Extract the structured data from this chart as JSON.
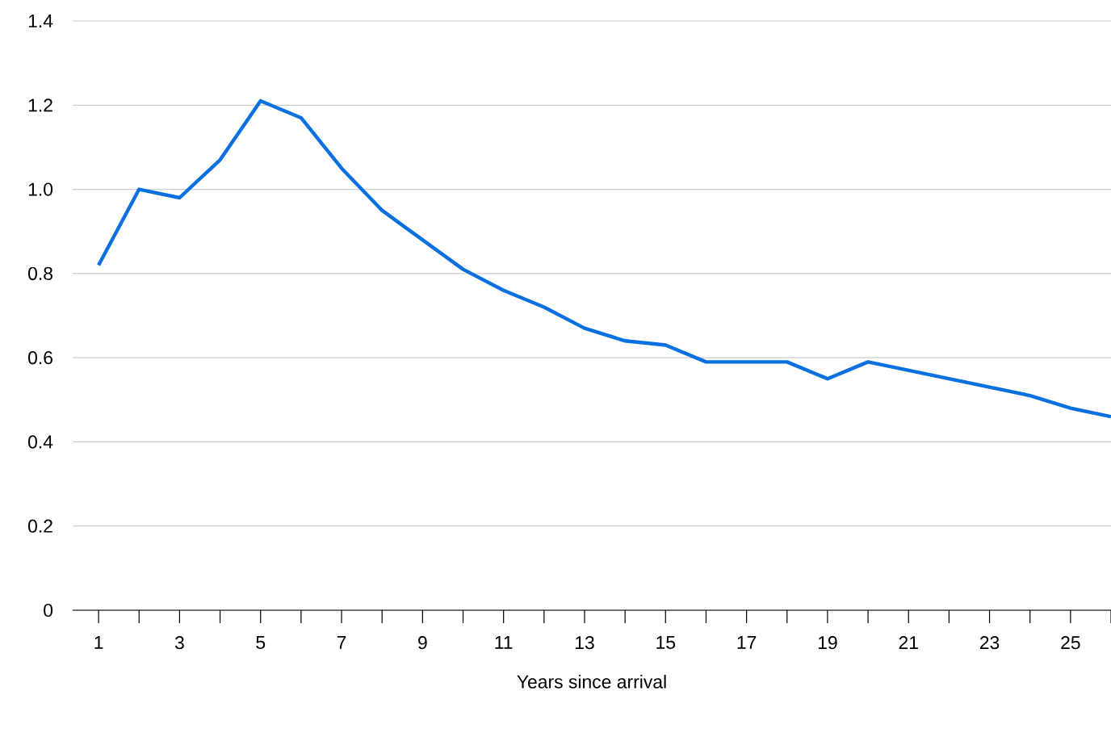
{
  "chart_data": {
    "type": "line",
    "xlabel": "Years since arrival",
    "categories": [
      "1",
      null,
      "3",
      null,
      "5",
      null,
      "7",
      null,
      "9",
      null,
      "11",
      null,
      "13",
      null,
      "15",
      null,
      "17",
      null,
      "19",
      null,
      "21",
      null,
      "23",
      null,
      "25",
      null
    ],
    "series": [
      {
        "color": "#0a70e0",
        "values": [
          0.82,
          1.0,
          0.98,
          1.07,
          1.21,
          1.17,
          1.05,
          0.95,
          0.88,
          0.81,
          0.76,
          0.72,
          0.67,
          0.64,
          0.63,
          0.59,
          0.59,
          0.59,
          0.55,
          0.59,
          0.57,
          0.55,
          0.53,
          0.51,
          0.48,
          0.46
        ]
      }
    ],
    "ylim": [
      0,
      1.4
    ],
    "yticks": [
      {
        "value": 0,
        "label": "0"
      },
      {
        "value": 0.2,
        "label": "0.2"
      },
      {
        "value": 0.4,
        "label": "0.4"
      },
      {
        "value": 0.6,
        "label": "0.6"
      },
      {
        "value": 0.8,
        "label": "0.8"
      },
      {
        "value": 1.0,
        "label": "1.0"
      },
      {
        "value": 1.2,
        "label": "1.2"
      },
      {
        "value": 1.4,
        "label": "1.4"
      }
    ],
    "grid": "y",
    "marker": "none",
    "line_style": "solid"
  }
}
